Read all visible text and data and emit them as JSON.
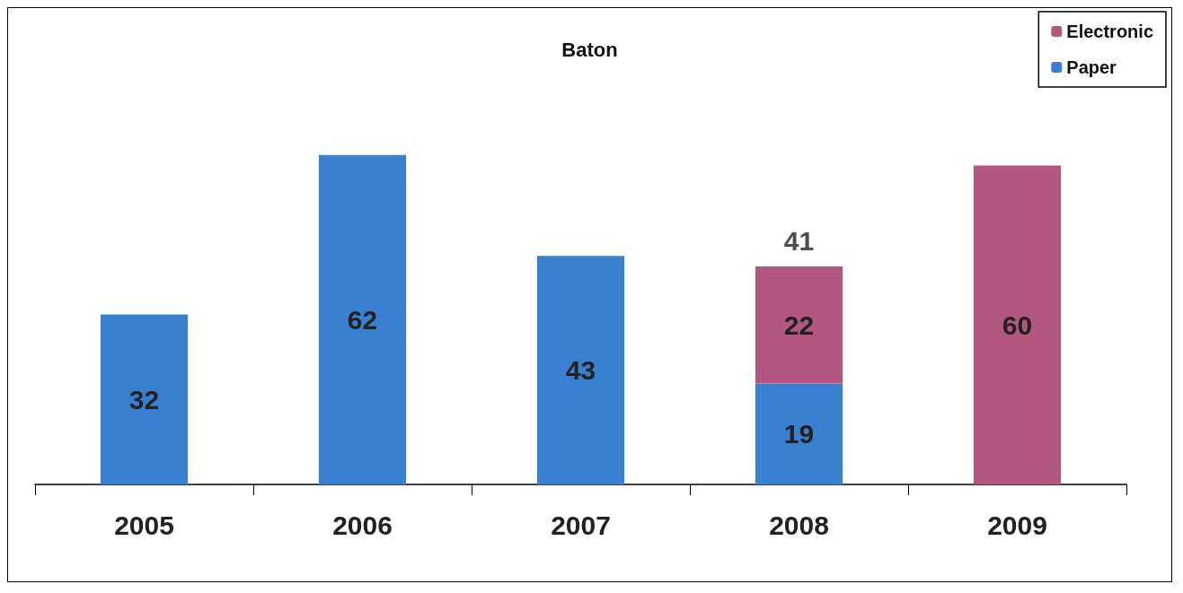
{
  "chart_data": {
    "type": "bar",
    "title": "Baton",
    "categories": [
      "2005",
      "2006",
      "2007",
      "2008",
      "2009"
    ],
    "stacked": true,
    "series": [
      {
        "name": "Paper",
        "color": "#3a80d0",
        "values": [
          32,
          62,
          43,
          19,
          null
        ]
      },
      {
        "name": "Electronic",
        "color": "#b2577f",
        "values": [
          null,
          null,
          null,
          22,
          60
        ]
      }
    ],
    "data_labels": true,
    "totals": [
      null,
      null,
      null,
      "41",
      null
    ],
    "legend": "top right",
    "grid": false
  }
}
